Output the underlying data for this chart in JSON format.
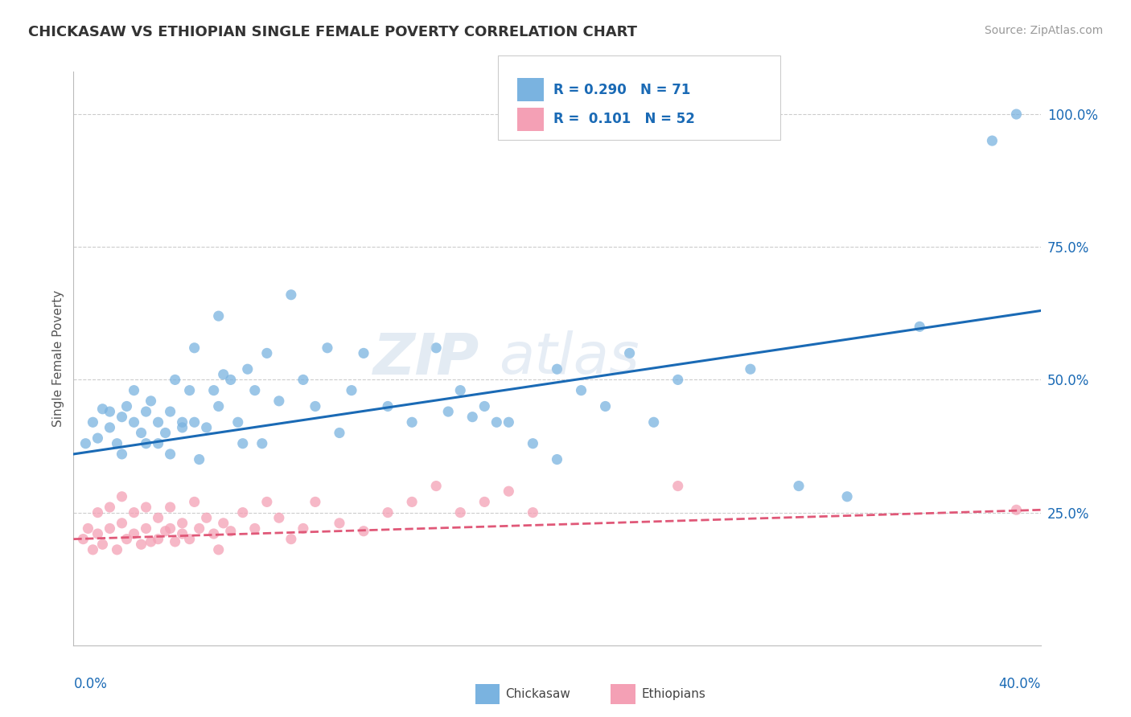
{
  "title": "CHICKASAW VS ETHIOPIAN SINGLE FEMALE POVERTY CORRELATION CHART",
  "source": "Source: ZipAtlas.com",
  "ylabel": "Single Female Poverty",
  "xmin": 0.0,
  "xmax": 0.4,
  "ymin": 0.0,
  "ymax": 1.08,
  "yticks": [
    0.25,
    0.5,
    0.75,
    1.0
  ],
  "ytick_labels": [
    "25.0%",
    "50.0%",
    "75.0%",
    "100.0%"
  ],
  "chickasaw_color": "#7ab3e0",
  "ethiopian_color": "#f4a0b5",
  "chickasaw_line_color": "#1a6ab5",
  "ethiopian_line_color": "#e05878",
  "chickasaw_x": [
    0.005,
    0.008,
    0.01,
    0.012,
    0.015,
    0.015,
    0.018,
    0.02,
    0.02,
    0.022,
    0.025,
    0.025,
    0.028,
    0.03,
    0.03,
    0.032,
    0.035,
    0.035,
    0.038,
    0.04,
    0.04,
    0.042,
    0.045,
    0.045,
    0.048,
    0.05,
    0.05,
    0.052,
    0.055,
    0.058,
    0.06,
    0.06,
    0.062,
    0.065,
    0.068,
    0.07,
    0.072,
    0.075,
    0.078,
    0.08,
    0.085,
    0.09,
    0.095,
    0.1,
    0.105,
    0.11,
    0.115,
    0.12,
    0.13,
    0.14,
    0.15,
    0.16,
    0.17,
    0.18,
    0.19,
    0.2,
    0.21,
    0.22,
    0.23,
    0.24,
    0.25,
    0.28,
    0.3,
    0.32,
    0.35,
    0.38,
    0.2,
    0.155,
    0.165,
    0.175,
    0.39
  ],
  "chickasaw_y": [
    0.38,
    0.42,
    0.39,
    0.445,
    0.41,
    0.44,
    0.38,
    0.36,
    0.43,
    0.45,
    0.42,
    0.48,
    0.4,
    0.38,
    0.44,
    0.46,
    0.38,
    0.42,
    0.4,
    0.36,
    0.44,
    0.5,
    0.41,
    0.42,
    0.48,
    0.56,
    0.42,
    0.35,
    0.41,
    0.48,
    0.62,
    0.45,
    0.51,
    0.5,
    0.42,
    0.38,
    0.52,
    0.48,
    0.38,
    0.55,
    0.46,
    0.66,
    0.5,
    0.45,
    0.56,
    0.4,
    0.48,
    0.55,
    0.45,
    0.42,
    0.56,
    0.48,
    0.45,
    0.42,
    0.38,
    0.52,
    0.48,
    0.45,
    0.55,
    0.42,
    0.5,
    0.52,
    0.3,
    0.28,
    0.6,
    0.95,
    0.35,
    0.44,
    0.43,
    0.42,
    1.0
  ],
  "ethiopian_x": [
    0.004,
    0.006,
    0.008,
    0.01,
    0.01,
    0.012,
    0.015,
    0.015,
    0.018,
    0.02,
    0.02,
    0.022,
    0.025,
    0.025,
    0.028,
    0.03,
    0.03,
    0.032,
    0.035,
    0.035,
    0.038,
    0.04,
    0.04,
    0.042,
    0.045,
    0.045,
    0.048,
    0.05,
    0.052,
    0.055,
    0.058,
    0.06,
    0.062,
    0.065,
    0.07,
    0.075,
    0.08,
    0.085,
    0.09,
    0.095,
    0.1,
    0.11,
    0.12,
    0.13,
    0.14,
    0.15,
    0.16,
    0.17,
    0.18,
    0.19,
    0.25,
    0.39
  ],
  "ethiopian_y": [
    0.2,
    0.22,
    0.18,
    0.25,
    0.21,
    0.19,
    0.22,
    0.26,
    0.18,
    0.23,
    0.28,
    0.2,
    0.25,
    0.21,
    0.19,
    0.22,
    0.26,
    0.195,
    0.24,
    0.2,
    0.215,
    0.26,
    0.22,
    0.195,
    0.23,
    0.21,
    0.2,
    0.27,
    0.22,
    0.24,
    0.21,
    0.18,
    0.23,
    0.215,
    0.25,
    0.22,
    0.27,
    0.24,
    0.2,
    0.22,
    0.27,
    0.23,
    0.215,
    0.25,
    0.27,
    0.3,
    0.25,
    0.27,
    0.29,
    0.25,
    0.3,
    0.255
  ]
}
